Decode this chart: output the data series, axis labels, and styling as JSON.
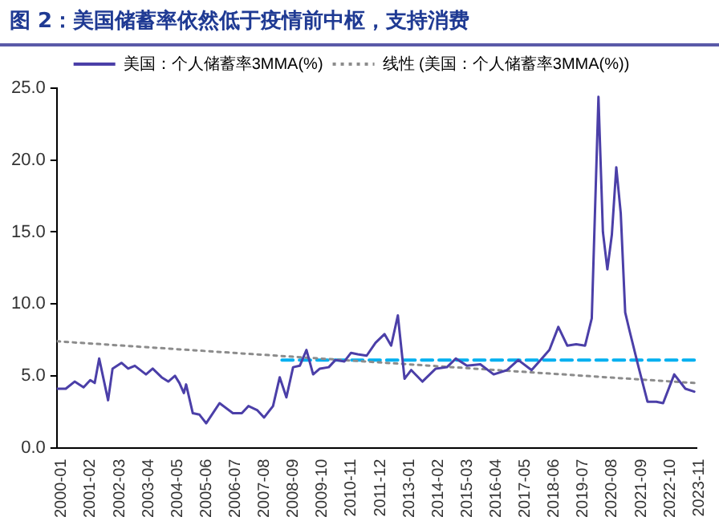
{
  "chart_data": {
    "type": "line",
    "title": "图 2：美国储蓄率依然低于疫情前中枢，支持消费",
    "series": [
      {
        "name": "美国：个人储蓄率3MMA(%)",
        "color": "#4b3fa8",
        "line_style": "solid",
        "x": [
          "2000-01",
          "2000-05",
          "2000-09",
          "2001-01",
          "2001-04",
          "2001-06",
          "2001-08",
          "2001-12",
          "2002-02",
          "2002-06",
          "2002-09",
          "2002-12",
          "2003-05",
          "2003-08",
          "2003-12",
          "2004-03",
          "2004-06",
          "2004-08",
          "2004-10",
          "2004-11",
          "2005-02",
          "2005-05",
          "2005-08",
          "2006-02",
          "2006-08",
          "2006-12",
          "2007-03",
          "2007-07",
          "2007-10",
          "2008-02",
          "2008-05",
          "2008-08",
          "2008-11",
          "2009-02",
          "2009-05",
          "2009-08",
          "2009-11",
          "2010-03",
          "2010-06",
          "2010-10",
          "2011-01",
          "2011-04",
          "2011-08",
          "2011-12",
          "2012-04",
          "2012-07",
          "2012-10",
          "2013-01",
          "2013-04",
          "2013-09",
          "2014-03",
          "2014-08",
          "2014-12",
          "2015-05",
          "2015-11",
          "2016-05",
          "2016-11",
          "2017-04",
          "2017-10",
          "2018-02",
          "2018-06",
          "2018-10",
          "2019-02",
          "2019-06",
          "2019-10",
          "2020-01",
          "2020-04",
          "2020-06",
          "2020-08",
          "2020-10",
          "2020-12",
          "2021-02",
          "2021-04",
          "2021-06",
          "2021-10",
          "2022-02",
          "2022-06",
          "2022-09",
          "2023-02",
          "2023-07",
          "2023-11"
        ],
        "values": [
          4.1,
          4.1,
          4.6,
          4.2,
          4.7,
          4.5,
          6.2,
          3.3,
          5.5,
          5.9,
          5.5,
          5.7,
          5.1,
          5.5,
          4.9,
          4.6,
          5.0,
          4.5,
          3.8,
          4.4,
          2.4,
          2.3,
          1.7,
          3.1,
          2.4,
          2.4,
          2.9,
          2.6,
          2.1,
          2.9,
          4.9,
          3.5,
          5.6,
          5.7,
          6.8,
          5.1,
          5.5,
          5.6,
          6.1,
          6.0,
          6.6,
          6.5,
          6.4,
          7.3,
          7.9,
          7.1,
          9.2,
          4.8,
          5.4,
          4.6,
          5.5,
          5.6,
          6.2,
          5.7,
          5.8,
          5.1,
          5.4,
          6.1,
          5.4,
          6.1,
          6.8,
          8.4,
          7.1,
          7.2,
          7.1,
          9.0,
          24.4,
          15.0,
          12.4,
          14.8,
          19.5,
          16.3,
          9.4,
          8.1,
          5.6,
          3.2,
          3.2,
          3.1,
          5.1,
          4.1,
          3.9
        ]
      },
      {
        "name": "线性 (美国：个人储蓄率3MMA(%))",
        "color": "#8c8c8c",
        "line_style": "dotted",
        "x": [
          "2000-01",
          "2023-11"
        ],
        "values": [
          7.4,
          4.5
        ]
      },
      {
        "color": "#00b0f0",
        "line_style": "dashed",
        "x": [
          "2008-06",
          "2023-11"
        ],
        "values": [
          6.1,
          6.1
        ]
      }
    ],
    "xlim": [
      "2000-01",
      "2023-12"
    ],
    "xticks": [
      "2000-01",
      "2001-02",
      "2002-03",
      "2003-04",
      "2004-05",
      "2005-06",
      "2006-07",
      "2007-08",
      "2008-09",
      "2009-10",
      "2010-11",
      "2011-12",
      "2013-01",
      "2014-02",
      "2015-03",
      "2016-04",
      "2017-05",
      "2018-06",
      "2019-07",
      "2020-08",
      "2021-09",
      "2022-10",
      "2023-11"
    ],
    "ylim": [
      0,
      25
    ],
    "yticks": [
      {
        "value": 0,
        "label": "0.0"
      },
      {
        "value": 5,
        "label": "5.0"
      },
      {
        "value": 10,
        "label": "10.0"
      },
      {
        "value": 15,
        "label": "15.0"
      },
      {
        "value": 20,
        "label": "20.0"
      },
      {
        "value": 25,
        "label": "25.0"
      }
    ],
    "grid": false,
    "legend": "top",
    "marker": "none"
  }
}
